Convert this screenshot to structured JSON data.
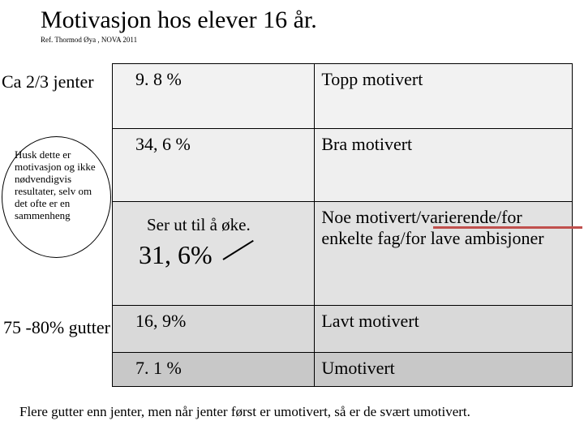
{
  "title": "Motivasjon hos elever 16 år.",
  "subtitle": "Ref. Thormod Øya , NOVA 2011",
  "leftNotes": {
    "top": "Ca 2/3 jenter",
    "ellipse": "Husk dette er motivasjon og ikke nødvendigvis resultater, selv om det ofte er en sammenheng",
    "bottom": "75 -80% gutter"
  },
  "rows": [
    {
      "pct": "9. 8 %",
      "label": "Topp motivert"
    },
    {
      "pct": "34, 6 %",
      "label": "Bra motivert"
    },
    {
      "ser": "Ser ut til å øke.",
      "big": "31, 6%",
      "label": "Noe motivert/varierende/for enkelte fag/for lave ambisjoner"
    },
    {
      "pct": "16, 9%",
      "label": "Lavt motivert"
    },
    {
      "pct": "7. 1 %",
      "label": "Umotivert"
    }
  ],
  "footer": "Flere gutter enn jenter, men når jenter først er umotivert, så er de svært umotivert.",
  "colors": {
    "redline": "#c0504d",
    "rowBgs": [
      "#f2f2f2",
      "#efefef",
      "#e2e2e2",
      "#d9d9d9",
      "#c8c8c8"
    ]
  }
}
